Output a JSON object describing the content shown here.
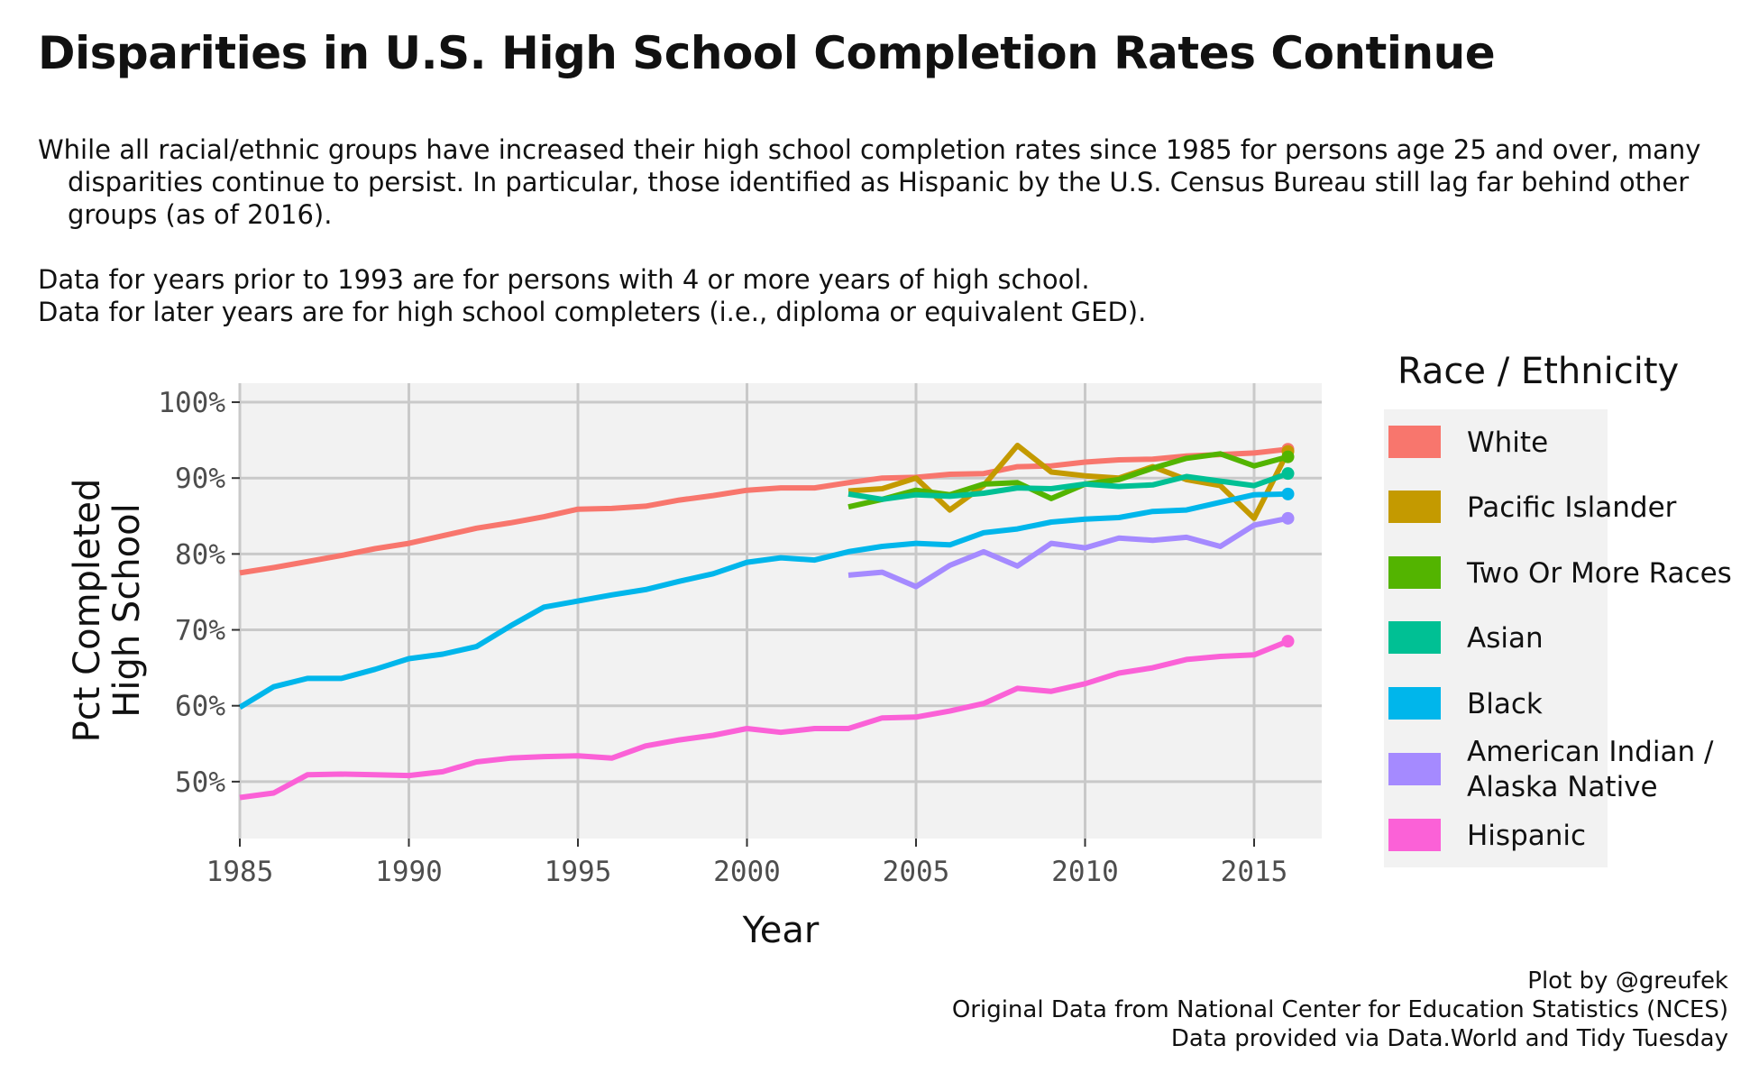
{
  "title": "Disparities in U.S. High School Completion Rates Continue",
  "subtitle": [
    "While all racial/ethnic groups have increased their high school completion rates since 1985 for persons age 25 and over, many disparities continue to persist.  In particular, those identified as Hispanic by the U.S. Census Bureau still lag far behind other groups (as of 2016)."
  ],
  "notes": [
    "Data for years prior to 1993 are for persons with 4 or more years of high school.",
    "Data for later years are for high school completers (i.e., diploma or equivalent GED)."
  ],
  "caption": [
    "Plot by @greufek",
    "Original Data from National Center for Education Statistics (NCES)",
    "Data provided via Data.World and Tidy Tuesday"
  ],
  "chart_data": {
    "type": "line",
    "xlabel": "Year",
    "ylabel": "Pct Completed High School",
    "xlim": [
      1985,
      2017
    ],
    "ylim": [
      42.5,
      102.5
    ],
    "x_ticks": [
      1985,
      1990,
      1995,
      2000,
      2005,
      2010,
      2015
    ],
    "x_tick_labels": [
      "1985",
      "1990",
      "1995",
      "2000",
      "2005",
      "2010",
      "2015"
    ],
    "y_ticks": [
      50,
      60,
      70,
      80,
      90,
      100
    ],
    "y_tick_labels": [
      "50%",
      "60%",
      "70%",
      "80%",
      "90%",
      "100%"
    ],
    "grid": true,
    "end_point_markers": true,
    "legend": {
      "title": "Race / Ethnicity",
      "position": "right"
    },
    "series": [
      {
        "name": "White",
        "color": "#F8766D",
        "x": [
          1985,
          1986,
          1987,
          1988,
          1989,
          1990,
          1991,
          1992,
          1993,
          1994,
          1995,
          1996,
          1997,
          1998,
          1999,
          2000,
          2001,
          2002,
          2003,
          2004,
          2005,
          2006,
          2007,
          2008,
          2009,
          2010,
          2011,
          2012,
          2013,
          2014,
          2015,
          2016
        ],
        "y": [
          77.5,
          78.2,
          79.0,
          79.8,
          80.7,
          81.4,
          82.4,
          83.4,
          84.1,
          84.9,
          85.9,
          86.0,
          86.3,
          87.1,
          87.7,
          88.4,
          88.7,
          88.7,
          89.4,
          90.0,
          90.1,
          90.5,
          90.6,
          91.5,
          91.6,
          92.1,
          92.4,
          92.5,
          92.9,
          93.1,
          93.3,
          93.8
        ]
      },
      {
        "name": "Pacific Islander",
        "color": "#C49A00",
        "x": [
          2003,
          2004,
          2005,
          2006,
          2007,
          2008,
          2009,
          2010,
          2011,
          2012,
          2013,
          2014,
          2015,
          2016
        ],
        "y": [
          88.3,
          88.6,
          90.0,
          85.8,
          89.0,
          94.3,
          90.8,
          90.3,
          90.0,
          91.5,
          89.8,
          89.0,
          84.7,
          93.5
        ]
      },
      {
        "name": "Two Or More Races",
        "color": "#53B400",
        "x": [
          2003,
          2004,
          2005,
          2006,
          2007,
          2008,
          2009,
          2010,
          2011,
          2012,
          2013,
          2014,
          2015,
          2016
        ],
        "y": [
          86.2,
          87.2,
          88.4,
          87.8,
          89.2,
          89.4,
          87.3,
          89.2,
          89.8,
          91.3,
          92.6,
          93.2,
          91.6,
          92.8
        ]
      },
      {
        "name": "Asian",
        "color": "#00C094",
        "x": [
          2003,
          2004,
          2005,
          2006,
          2007,
          2008,
          2009,
          2010,
          2011,
          2012,
          2013,
          2014,
          2015,
          2016
        ],
        "y": [
          87.9,
          87.2,
          87.8,
          87.6,
          88.0,
          88.7,
          88.6,
          89.2,
          88.9,
          89.1,
          90.2,
          89.6,
          89.0,
          90.6
        ]
      },
      {
        "name": "Black",
        "color": "#00B6EB",
        "x": [
          1985,
          1986,
          1987,
          1988,
          1989,
          1990,
          1991,
          1992,
          1993,
          1994,
          1995,
          1996,
          1997,
          1998,
          1999,
          2000,
          2001,
          2002,
          2003,
          2004,
          2005,
          2006,
          2007,
          2008,
          2009,
          2010,
          2011,
          2012,
          2013,
          2014,
          2015,
          2016
        ],
        "y": [
          59.8,
          62.5,
          63.6,
          63.6,
          64.8,
          66.2,
          66.8,
          67.8,
          70.5,
          73.0,
          73.8,
          74.6,
          75.3,
          76.4,
          77.4,
          78.9,
          79.5,
          79.2,
          80.3,
          81.0,
          81.4,
          81.2,
          82.8,
          83.3,
          84.2,
          84.6,
          84.8,
          85.6,
          85.8,
          86.8,
          87.8,
          87.9
        ]
      },
      {
        "name": "American Indian / Alaska Native",
        "color": "#A58AFF",
        "x": [
          2003,
          2004,
          2005,
          2006,
          2007,
          2008,
          2009,
          2010,
          2011,
          2012,
          2013,
          2014,
          2015,
          2016
        ],
        "y": [
          77.2,
          77.6,
          75.7,
          78.5,
          80.3,
          78.4,
          81.4,
          80.8,
          82.1,
          81.8,
          82.2,
          81.0,
          83.8,
          84.7
        ]
      },
      {
        "name": "Hispanic",
        "color": "#FB61D7",
        "x": [
          1985,
          1986,
          1987,
          1988,
          1989,
          1990,
          1991,
          1992,
          1993,
          1994,
          1995,
          1996,
          1997,
          1998,
          1999,
          2000,
          2001,
          2002,
          2003,
          2004,
          2005,
          2006,
          2007,
          2008,
          2009,
          2010,
          2011,
          2012,
          2013,
          2014,
          2015,
          2016
        ],
        "y": [
          47.9,
          48.5,
          50.9,
          51.0,
          50.9,
          50.8,
          51.3,
          52.6,
          53.1,
          53.3,
          53.4,
          53.1,
          54.7,
          55.5,
          56.1,
          57.0,
          56.5,
          57.0,
          57.0,
          58.4,
          58.5,
          59.3,
          60.3,
          62.3,
          61.9,
          62.9,
          64.3,
          65.0,
          66.1,
          66.5,
          66.7,
          68.5
        ]
      }
    ]
  }
}
